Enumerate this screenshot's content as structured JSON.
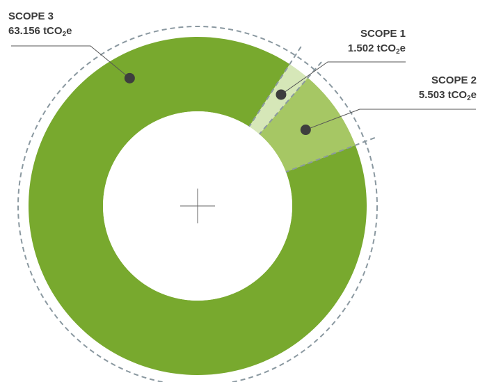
{
  "chart_data": {
    "type": "pie",
    "title": "",
    "unit_prefix": "tCO",
    "unit_subscript": "2",
    "unit_suffix": "e",
    "slices": [
      {
        "name": "SCOPE 1",
        "value": 1.502,
        "value_label": "1.502",
        "color": "#d6e7b8"
      },
      {
        "name": "SCOPE 2",
        "value": 5.503,
        "value_label": "5.503",
        "color": "#a6c764"
      },
      {
        "name": "SCOPE 3",
        "value": 63.156,
        "value_label": "63.156",
        "color": "#78a92e"
      }
    ],
    "legend": "none"
  }
}
